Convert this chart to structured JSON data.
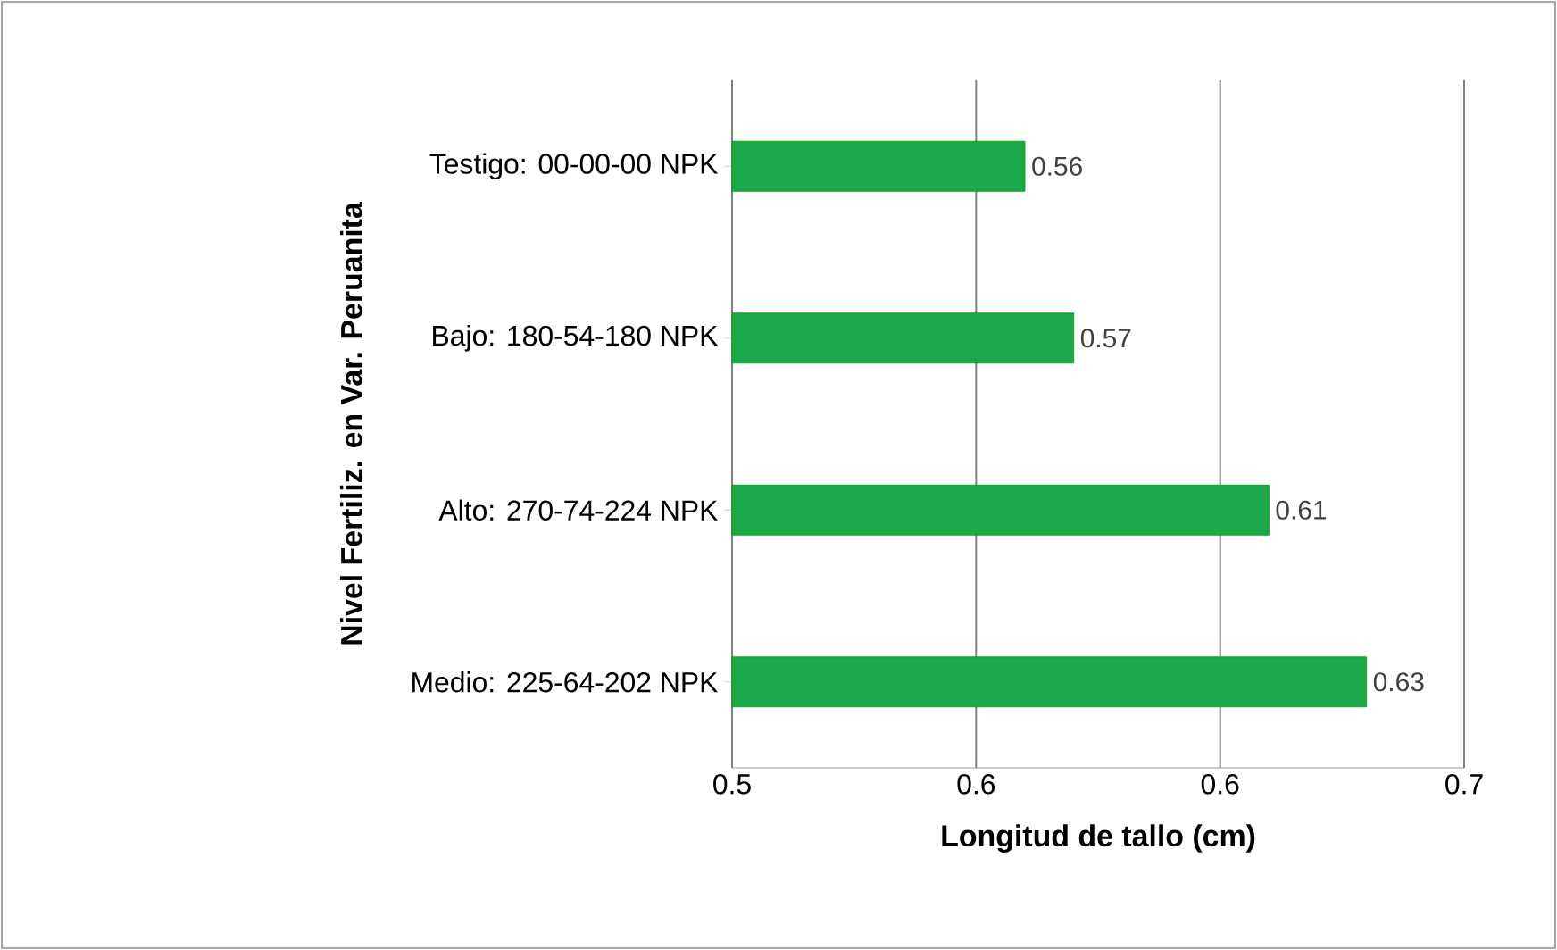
{
  "chart_data": {
    "type": "bar",
    "orientation": "horizontal",
    "xlabel": "Longitud de tallo (cm)",
    "ylabel": "Nivel Fertiliz. en Var. Peruanita",
    "categories": [
      "Testigo: 00-00-00 NPK",
      "Bajo: 180-54-180 NPK",
      "Alto: 270-74-224 NPK",
      "Medio: 225-64-202 NPK"
    ],
    "values": [
      0.56,
      0.57,
      0.61,
      0.63
    ],
    "color": "#1aa84a",
    "data_labels": true,
    "xlim": [
      0.5,
      0.65
    ],
    "xticks": [
      {
        "value": 0.5,
        "label": "0.5"
      },
      {
        "value": 0.55,
        "label": "0.6"
      },
      {
        "value": 0.6,
        "label": "0.6"
      },
      {
        "value": 0.65,
        "label": "0.7"
      }
    ],
    "grid": "x"
  }
}
